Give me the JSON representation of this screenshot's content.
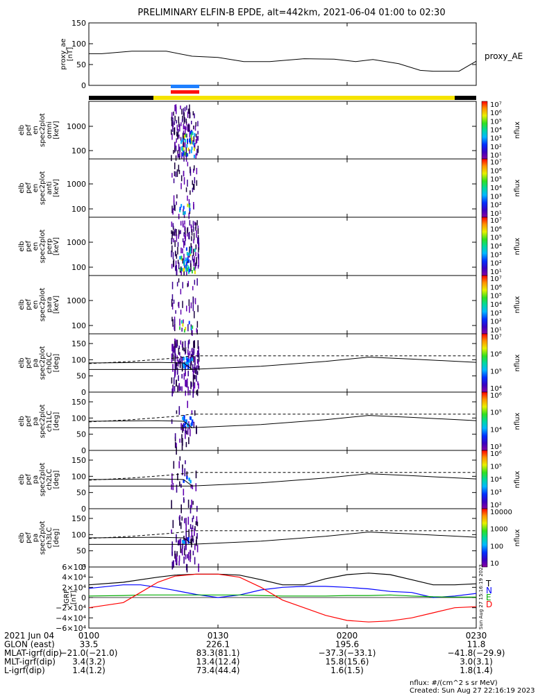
{
  "title": "PRELIMINARY ELFIN-B EPDE, alt=442km, 2021-06-04 01:00 to 02:30",
  "chart_data": [
    {
      "type": "line",
      "panel": "proxy_ae",
      "ylabel_lines": [
        "proxy_ae",
        "[nT]"
      ],
      "legend": "proxy_AE",
      "ylim": [
        0,
        150
      ],
      "yticks": [
        "0",
        "50",
        "100",
        "150"
      ],
      "x_minutes": [
        0,
        3,
        10,
        18,
        24,
        30,
        36,
        42,
        50,
        57,
        62,
        66,
        72,
        77,
        80,
        86,
        90
      ],
      "values": [
        76,
        76,
        82,
        82,
        70,
        67,
        57,
        57,
        64,
        63,
        57,
        62,
        52,
        36,
        34,
        34,
        58
      ]
    },
    {
      "type": "bar",
      "panel": "orbit-phase-bar",
      "segments": [
        "black",
        "yellow",
        "black"
      ],
      "segment_bounds_minutes": [
        0,
        15,
        85,
        90
      ],
      "collection_markers": [
        "blue",
        "red"
      ]
    },
    {
      "type": "heatmap",
      "panel": "spectrogram-omni",
      "ylabel_lines": [
        "elb",
        "pef",
        "en",
        "spec2plot",
        "omni",
        "[keV]"
      ],
      "yticks": [
        "100",
        "1000"
      ],
      "colorbar_label": "nflux",
      "colorbar_ticks": [
        "10^1",
        "10^2",
        "10^3",
        "10^4",
        "10^5",
        "10^6",
        "10^7"
      ]
    },
    {
      "type": "heatmap",
      "panel": "spectrogram-anti",
      "ylabel_lines": [
        "elb",
        "pef",
        "en",
        "spec2plot",
        "anti",
        "[keV]"
      ],
      "yticks": [
        "100",
        "1000"
      ],
      "colorbar_label": "nflux",
      "colorbar_ticks": [
        "10^1",
        "10^2",
        "10^3",
        "10^4",
        "10^5",
        "10^6",
        "10^7"
      ]
    },
    {
      "type": "heatmap",
      "panel": "spectrogram-perp",
      "ylabel_lines": [
        "elb",
        "pef",
        "en",
        "spec2plot",
        "perp",
        "[keV]"
      ],
      "yticks": [
        "100",
        "1000"
      ],
      "colorbar_label": "nflux",
      "colorbar_ticks": [
        "10^1",
        "10^2",
        "10^3",
        "10^4",
        "10^5",
        "10^6",
        "10^7"
      ]
    },
    {
      "type": "heatmap",
      "panel": "spectrogram-para",
      "ylabel_lines": [
        "elb",
        "pef",
        "en",
        "spec2plot",
        "para",
        "[keV]"
      ],
      "yticks": [
        "100",
        "1000"
      ],
      "colorbar_label": "nflux",
      "colorbar_ticks": [
        "10^1",
        "10^2",
        "10^3",
        "10^4",
        "10^5",
        "10^6",
        "10^7"
      ]
    },
    {
      "type": "heatmap",
      "panel": "pitch-angle-ch0LC",
      "ylabel_lines": [
        "elb",
        "pef",
        "pa",
        "spec2plot",
        "ch0LC",
        "[deg]"
      ],
      "ylim": [
        0,
        180
      ],
      "yticks": [
        "0",
        "50",
        "100",
        "150"
      ],
      "colorbar_label": "nflux",
      "colorbar_ticks": [
        "10^4",
        "10^5",
        "10^6",
        "10^7"
      ]
    },
    {
      "type": "heatmap",
      "panel": "pitch-angle-ch1LC",
      "ylabel_lines": [
        "elb",
        "pef",
        "pa",
        "spec2plot",
        "ch1LC",
        "[deg]"
      ],
      "ylim": [
        0,
        180
      ],
      "yticks": [
        "0",
        "50",
        "100",
        "150"
      ],
      "colorbar_label": "nflux",
      "colorbar_ticks": [
        "10^3",
        "10^4",
        "10^5",
        "10^6"
      ]
    },
    {
      "type": "heatmap",
      "panel": "pitch-angle-ch2LC",
      "ylabel_lines": [
        "elb",
        "pef",
        "pa",
        "spec2plot",
        "ch2LC",
        "[deg]"
      ],
      "ylim": [
        0,
        180
      ],
      "yticks": [
        "0",
        "50",
        "100",
        "150"
      ],
      "colorbar_label": "nflux",
      "colorbar_ticks": [
        "10^2",
        "10^3",
        "10^4",
        "10^5",
        "10^6"
      ]
    },
    {
      "type": "heatmap",
      "panel": "pitch-angle-ch3LC",
      "ylabel_lines": [
        "elb",
        "pef",
        "pa",
        "spec2plot",
        "ch3LC",
        "[deg]"
      ],
      "ylim": [
        0,
        180
      ],
      "yticks": [
        "0",
        "50",
        "100",
        "150"
      ],
      "colorbar_label": "nflux",
      "colorbar_ticks": [
        "10",
        "100",
        "1000",
        "10000"
      ]
    },
    {
      "type": "line",
      "panel": "igrf-field",
      "ylabel_lines": [
        "IGRF",
        "[nT]"
      ],
      "ylim": [
        -60000,
        60000
      ],
      "yticks": [
        "−6×10⁴",
        "−4×10⁴",
        "−2×10⁴",
        "0",
        "2×10⁴",
        "4×10⁴",
        "6×10⁴"
      ],
      "x_minutes": [
        0,
        8,
        12,
        16,
        20,
        25,
        30,
        35,
        40,
        45,
        50,
        55,
        60,
        65,
        70,
        75,
        80,
        85,
        90
      ],
      "series": [
        {
          "name": "T",
          "color": "#000000",
          "values": [
            25000,
            30000,
            35000,
            40000,
            44000,
            46000,
            46000,
            44000,
            35000,
            25000,
            25000,
            37000,
            45000,
            48000,
            45000,
            35000,
            25000,
            25000,
            27000
          ]
        },
        {
          "name": "N",
          "color": "#0000ff",
          "values": [
            18000,
            25000,
            25000,
            20000,
            14000,
            6000,
            0,
            5000,
            15000,
            20000,
            22000,
            22000,
            20000,
            17000,
            12000,
            10000,
            0,
            3000,
            8000
          ]
        },
        {
          "name": "E",
          "color": "#00aa00",
          "values": [
            3000,
            4000,
            5000,
            5000,
            5000,
            5000,
            5000,
            5000,
            4000,
            3000,
            3000,
            3000,
            4000,
            4000,
            5000,
            3000,
            1500,
            1000,
            1000
          ]
        },
        {
          "name": "D",
          "color": "#ff0000",
          "values": [
            -20000,
            -10000,
            10000,
            30000,
            42000,
            46000,
            46000,
            40000,
            20000,
            -5000,
            -20000,
            -35000,
            -45000,
            -48000,
            -46000,
            -40000,
            -30000,
            -20000,
            -18000
          ]
        }
      ]
    }
  ],
  "x_axis": {
    "tick_labels": [
      "0100",
      "0130",
      "0200",
      "0230"
    ],
    "tick_minutes": [
      0,
      30,
      60,
      90
    ]
  },
  "footer_table": {
    "rows": [
      {
        "label": "2021 Jun 04",
        "values": [
          "0100",
          "0130",
          "0200",
          "0230"
        ]
      },
      {
        "label": "GLON (east)",
        "values": [
          "33.5",
          "226.1",
          "195.6",
          "11.8"
        ]
      },
      {
        "label": "MLAT-igrf(dip)",
        "values": [
          "−21.0(−21.0)",
          "83.3(81.1)",
          "−37.3(−33.1)",
          "−41.8(−29.9)"
        ]
      },
      {
        "label": "MLT-igrf(dip)",
        "values": [
          "3.4(3.2)",
          "13.4(12.4)",
          "15.8(15.6)",
          "3.0(3.1)"
        ]
      },
      {
        "label": "L-igrf(dip)",
        "values": [
          "1.4(1.2)",
          "73.4(44.4)",
          "1.6(1.5)",
          "1.8(1.4)"
        ]
      }
    ]
  },
  "footer_units": "nflux: #/(cm^2 s sr MeV)",
  "footer_created": "Created: Sun Aug 27 22:16:19 2023",
  "side_stamp": "Sun Aug 27 15:16:19 2023"
}
